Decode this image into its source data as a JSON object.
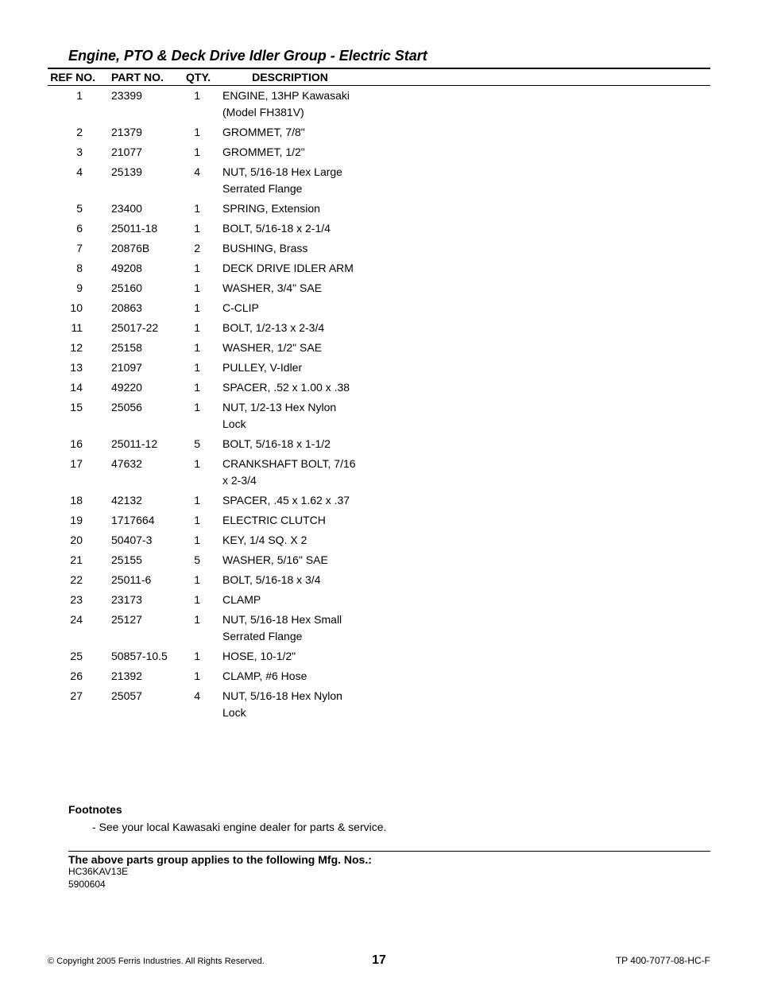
{
  "title": "Engine, PTO & Deck Drive Idler Group - Electric Start",
  "columns": {
    "ref": "REF NO.",
    "part": "PART NO.",
    "qty": "QTY.",
    "desc": "DESCRIPTION"
  },
  "rows": [
    {
      "ref": "1",
      "part": "23399",
      "qty": "1",
      "desc": "ENGINE, 13HP Kawasaki (Model FH381V)"
    },
    {
      "ref": "2",
      "part": "21379",
      "qty": "1",
      "desc": "GROMMET, 7/8\""
    },
    {
      "ref": "3",
      "part": "21077",
      "qty": "1",
      "desc": "GROMMET, 1/2\""
    },
    {
      "ref": "4",
      "part": "25139",
      "qty": "4",
      "desc": "NUT, 5/16-18 Hex Large Serrated Flange"
    },
    {
      "ref": "5",
      "part": "23400",
      "qty": "1",
      "desc": "SPRING, Extension"
    },
    {
      "ref": "6",
      "part": "25011-18",
      "qty": "1",
      "desc": "BOLT, 5/16-18 x 2-1/4"
    },
    {
      "ref": "7",
      "part": "20876B",
      "qty": "2",
      "desc": "BUSHING, Brass"
    },
    {
      "ref": "8",
      "part": "49208",
      "qty": "1",
      "desc": "DECK DRIVE IDLER ARM"
    },
    {
      "ref": "9",
      "part": "25160",
      "qty": "1",
      "desc": "WASHER, 3/4\" SAE"
    },
    {
      "ref": "10",
      "part": "20863",
      "qty": "1",
      "desc": "C-CLIP"
    },
    {
      "ref": "11",
      "part": "25017-22",
      "qty": "1",
      "desc": "BOLT, 1/2-13 x 2-3/4"
    },
    {
      "ref": "12",
      "part": "25158",
      "qty": "1",
      "desc": "WASHER, 1/2\" SAE"
    },
    {
      "ref": "13",
      "part": "21097",
      "qty": "1",
      "desc": "PULLEY, V-Idler"
    },
    {
      "ref": "14",
      "part": "49220",
      "qty": "1",
      "desc": "SPACER, .52 x 1.00 x .38"
    },
    {
      "ref": "15",
      "part": "25056",
      "qty": "1",
      "desc": "NUT, 1/2-13 Hex Nylon Lock"
    },
    {
      "ref": "16",
      "part": "25011-12",
      "qty": "5",
      "desc": "BOLT, 5/16-18 x 1-1/2"
    },
    {
      "ref": "17",
      "part": "47632",
      "qty": "1",
      "desc": "CRANKSHAFT BOLT, 7/16 x 2-3/4"
    },
    {
      "ref": "18",
      "part": "42132",
      "qty": "1",
      "desc": "SPACER, .45 x 1.62 x .37"
    },
    {
      "ref": "19",
      "part": "1717664",
      "qty": "1",
      "desc": "ELECTRIC CLUTCH"
    },
    {
      "ref": "20",
      "part": "50407-3",
      "qty": "1",
      "desc": "KEY, 1/4 SQ. X 2"
    },
    {
      "ref": "21",
      "part": "25155",
      "qty": "5",
      "desc": "WASHER, 5/16\" SAE"
    },
    {
      "ref": "22",
      "part": "25011-6",
      "qty": "1",
      "desc": "BOLT, 5/16-18 x 3/4"
    },
    {
      "ref": "23",
      "part": "23173",
      "qty": "1",
      "desc": "CLAMP"
    },
    {
      "ref": "24",
      "part": "25127",
      "qty": "1",
      "desc": "NUT, 5/16-18 Hex Small Serrated Flange"
    },
    {
      "ref": "25",
      "part": "50857-10.5",
      "qty": "1",
      "desc": "HOSE, 10-1/2\""
    },
    {
      "ref": "26",
      "part": "21392",
      "qty": "1",
      "desc": "CLAMP, #6 Hose"
    },
    {
      "ref": "27",
      "part": "25057",
      "qty": "4",
      "desc": "NUT, 5/16-18 Hex Nylon Lock"
    }
  ],
  "footnotes": {
    "heading": "Footnotes",
    "lines": [
      "- See your local Kawasaki engine dealer for parts & service."
    ]
  },
  "applies": {
    "heading": "The above parts group applies to the following Mfg. Nos.:",
    "codes": [
      "HC36KAV13E",
      "5900604"
    ]
  },
  "footer": {
    "copyright": "© Copyright  2005 Ferris Industries. All Rights Reserved.",
    "page": "17",
    "doc": "TP 400-7077-08-HC-F"
  }
}
